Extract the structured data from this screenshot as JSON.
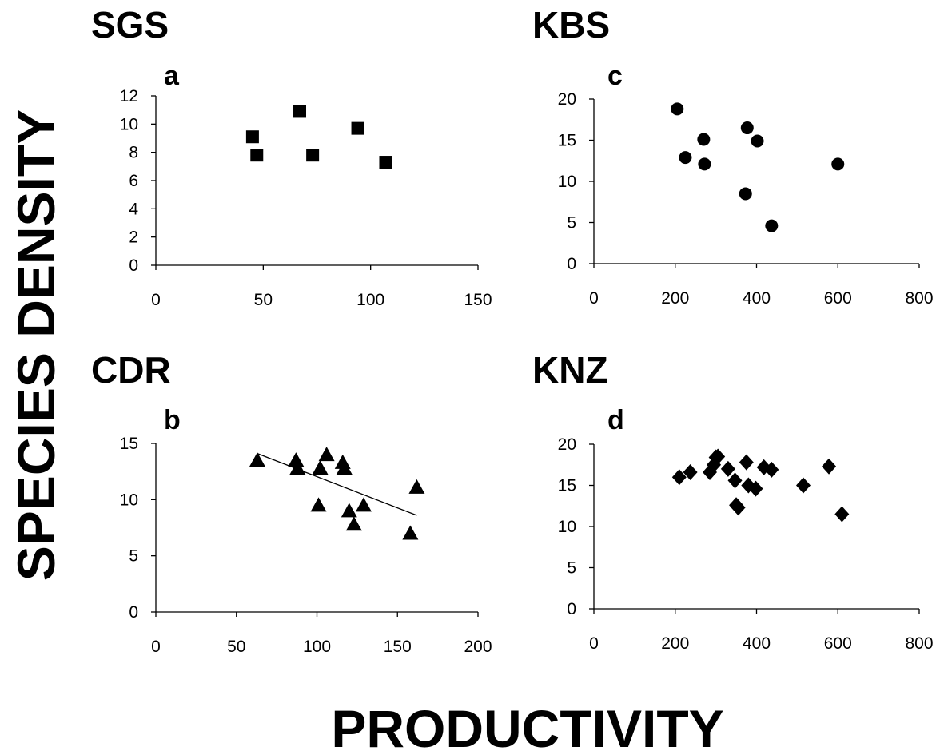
{
  "ylabel": "SPECIES DENSITY",
  "xlabel": "PRODUCTIVITY",
  "chart_data": [
    {
      "type": "scatter",
      "site": "SGS",
      "panel": "a",
      "marker": "square",
      "xlim": [
        0,
        150
      ],
      "ylim": [
        0,
        12
      ],
      "xticks": [
        0,
        50,
        100,
        150
      ],
      "yticks": [
        0,
        2,
        4,
        6,
        8,
        10,
        12
      ],
      "grid": false,
      "points": [
        {
          "x": 45,
          "y": 9.1
        },
        {
          "x": 47,
          "y": 7.8
        },
        {
          "x": 67,
          "y": 10.9
        },
        {
          "x": 73,
          "y": 7.8
        },
        {
          "x": 94,
          "y": 9.7
        },
        {
          "x": 107,
          "y": 7.3
        }
      ]
    },
    {
      "type": "scatter",
      "site": "KBS",
      "panel": "c",
      "marker": "circle",
      "xlim": [
        0,
        800
      ],
      "ylim": [
        0,
        20
      ],
      "xticks": [
        0,
        200,
        400,
        600,
        800
      ],
      "yticks": [
        0,
        5,
        10,
        15,
        20
      ],
      "grid": false,
      "points": [
        {
          "x": 205,
          "y": 18.8
        },
        {
          "x": 225,
          "y": 12.9
        },
        {
          "x": 270,
          "y": 15.1
        },
        {
          "x": 272,
          "y": 12.1
        },
        {
          "x": 373,
          "y": 8.5
        },
        {
          "x": 377,
          "y": 16.5
        },
        {
          "x": 402,
          "y": 14.9
        },
        {
          "x": 437,
          "y": 4.6
        },
        {
          "x": 600,
          "y": 12.1
        }
      ]
    },
    {
      "type": "scatter",
      "site": "CDR",
      "panel": "b",
      "marker": "triangle",
      "xlim": [
        0,
        200
      ],
      "ylim": [
        0,
        15
      ],
      "xticks": [
        0,
        50,
        100,
        150,
        200
      ],
      "yticks": [
        0,
        5,
        10,
        15
      ],
      "grid": false,
      "points": [
        {
          "x": 63,
          "y": 13.5
        },
        {
          "x": 87,
          "y": 13.5
        },
        {
          "x": 88,
          "y": 12.8
        },
        {
          "x": 101,
          "y": 9.5
        },
        {
          "x": 102,
          "y": 12.8
        },
        {
          "x": 106,
          "y": 14.0
        },
        {
          "x": 116,
          "y": 13.3
        },
        {
          "x": 117,
          "y": 12.8
        },
        {
          "x": 120,
          "y": 9.0
        },
        {
          "x": 123,
          "y": 7.8
        },
        {
          "x": 129,
          "y": 9.5
        },
        {
          "x": 158,
          "y": 7.0
        },
        {
          "x": 162,
          "y": 11.1
        }
      ],
      "trendline": {
        "x": [
          63,
          162
        ],
        "y": [
          14.1,
          8.6
        ]
      }
    },
    {
      "type": "scatter",
      "site": "KNZ",
      "panel": "d",
      "marker": "diamond",
      "xlim": [
        0,
        800
      ],
      "ylim": [
        0,
        20
      ],
      "xticks": [
        0,
        200,
        400,
        600,
        800
      ],
      "yticks": [
        0,
        5,
        10,
        15,
        20
      ],
      "grid": false,
      "points": [
        {
          "x": 210,
          "y": 16.0
        },
        {
          "x": 237,
          "y": 16.6
        },
        {
          "x": 285,
          "y": 16.6
        },
        {
          "x": 295,
          "y": 17.5
        },
        {
          "x": 300,
          "y": 18.4
        },
        {
          "x": 305,
          "y": 18.5
        },
        {
          "x": 330,
          "y": 17.0
        },
        {
          "x": 347,
          "y": 15.6
        },
        {
          "x": 350,
          "y": 12.6
        },
        {
          "x": 355,
          "y": 12.3
        },
        {
          "x": 375,
          "y": 17.8
        },
        {
          "x": 380,
          "y": 15.0
        },
        {
          "x": 398,
          "y": 14.6
        },
        {
          "x": 418,
          "y": 17.2
        },
        {
          "x": 437,
          "y": 16.9
        },
        {
          "x": 515,
          "y": 15.0
        },
        {
          "x": 578,
          "y": 17.3
        },
        {
          "x": 610,
          "y": 11.5
        }
      ]
    }
  ]
}
